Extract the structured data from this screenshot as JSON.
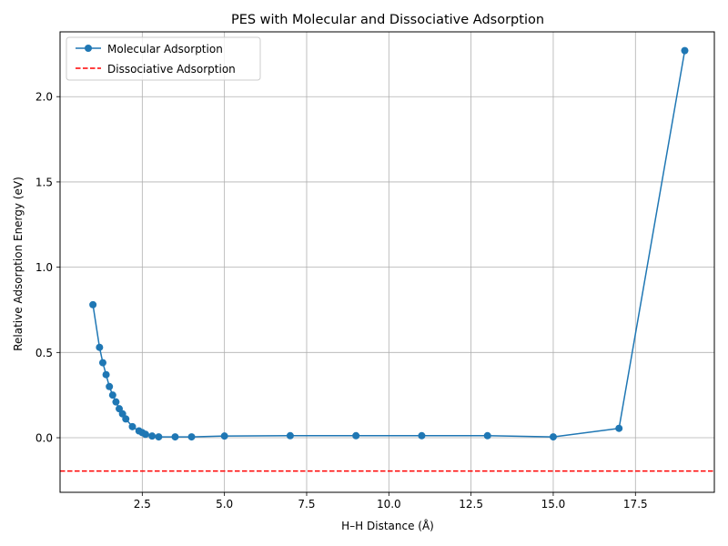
{
  "chart_data": {
    "type": "line",
    "title": "PES with Molecular and Dissociative Adsorption",
    "xlabel": "H–H Distance (Å)",
    "ylabel": "Relative Adsorption Energy (eV)",
    "xlim": [
      0.0,
      19.9
    ],
    "ylim": [
      -0.32,
      2.38
    ],
    "xticks": [
      2.5,
      5.0,
      7.5,
      10.0,
      12.5,
      15.0,
      17.5
    ],
    "xtick_labels": [
      "2.5",
      "5.0",
      "7.5",
      "10.0",
      "12.5",
      "15.0",
      "17.5"
    ],
    "yticks": [
      0.0,
      0.5,
      1.0,
      1.5,
      2.0
    ],
    "ytick_labels": [
      "0.0",
      "0.5",
      "1.0",
      "1.5",
      "2.0"
    ],
    "grid": true,
    "legend_position": "top-left",
    "series": [
      {
        "name": "Molecular Adsorption",
        "style": "line-with-markers",
        "color": "#1f77b4",
        "x": [
          1.0,
          1.2,
          1.3,
          1.4,
          1.5,
          1.6,
          1.7,
          1.8,
          1.9,
          2.0,
          2.2,
          2.4,
          2.5,
          2.6,
          2.8,
          3.0,
          3.5,
          4.0,
          5.0,
          7.0,
          9.0,
          11.0,
          13.0,
          15.0,
          17.0,
          19.0
        ],
        "y": [
          0.78,
          0.53,
          0.44,
          0.37,
          0.3,
          0.25,
          0.21,
          0.17,
          0.14,
          0.11,
          0.065,
          0.04,
          0.03,
          0.02,
          0.01,
          0.005,
          0.005,
          0.005,
          0.01,
          0.012,
          0.012,
          0.012,
          0.012,
          0.005,
          0.055,
          2.27
        ]
      },
      {
        "name": "Dissociative Adsorption",
        "style": "dashed-horizontal",
        "color": "#ff0000",
        "y": -0.195
      }
    ]
  }
}
